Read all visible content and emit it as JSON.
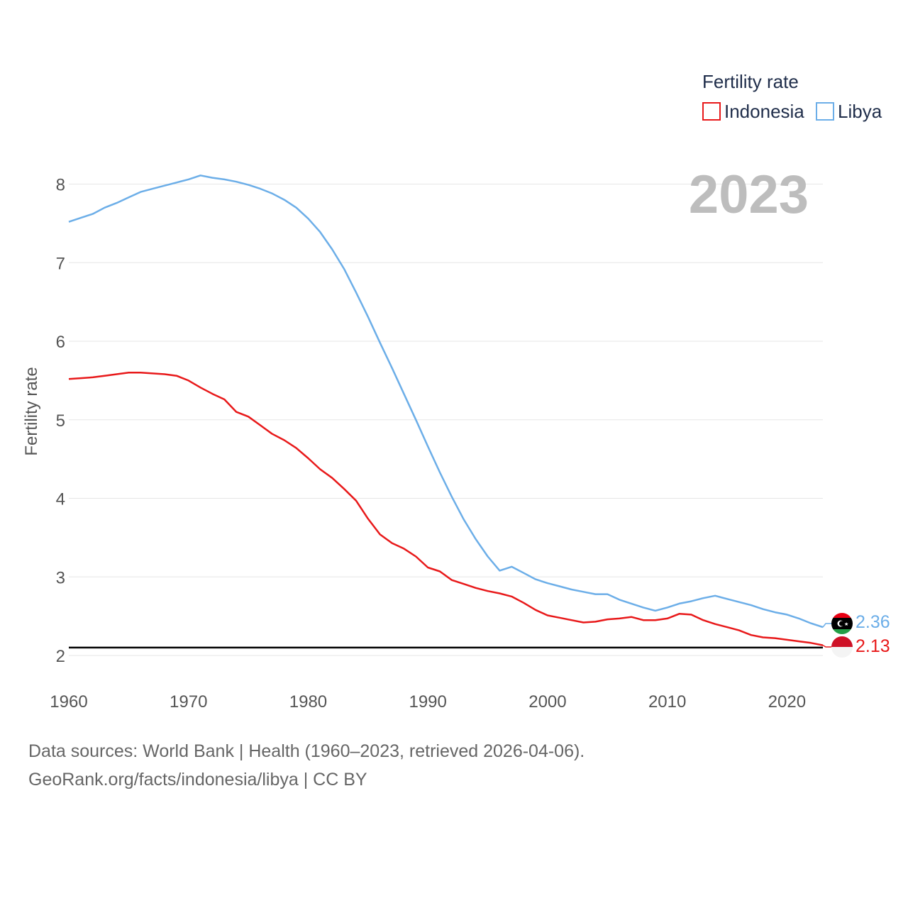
{
  "chart_data": {
    "type": "line",
    "title": "Fertility rate",
    "ylabel": "Fertility rate",
    "xlabel": "",
    "year_display": "2023",
    "xlim": [
      1960,
      2023
    ],
    "ylim": [
      1.8,
      8.5
    ],
    "x_ticks": [
      1960,
      1970,
      1980,
      1990,
      2000,
      2010,
      2020
    ],
    "y_ticks": [
      2,
      3,
      4,
      5,
      6,
      7,
      8
    ],
    "reference_line": {
      "value": 2.1
    },
    "legend": {
      "title": "Fertility rate",
      "position": "top-right"
    },
    "x": [
      1960,
      1961,
      1962,
      1963,
      1964,
      1965,
      1966,
      1967,
      1968,
      1969,
      1970,
      1971,
      1972,
      1973,
      1974,
      1975,
      1976,
      1977,
      1978,
      1979,
      1980,
      1981,
      1982,
      1983,
      1984,
      1985,
      1986,
      1987,
      1988,
      1989,
      1990,
      1991,
      1992,
      1993,
      1994,
      1995,
      1996,
      1997,
      1998,
      1999,
      2000,
      2001,
      2002,
      2003,
      2004,
      2005,
      2006,
      2007,
      2008,
      2009,
      2010,
      2011,
      2012,
      2013,
      2014,
      2015,
      2016,
      2017,
      2018,
      2019,
      2020,
      2021,
      2022,
      2023
    ],
    "series": [
      {
        "name": "Indonesia",
        "color": "#e8191a",
        "end_label": "2.13",
        "values": [
          5.52,
          5.53,
          5.54,
          5.56,
          5.58,
          5.6,
          5.6,
          5.59,
          5.58,
          5.56,
          5.5,
          5.41,
          5.33,
          5.26,
          5.1,
          5.04,
          4.93,
          4.82,
          4.74,
          4.64,
          4.51,
          4.37,
          4.26,
          4.12,
          3.97,
          3.74,
          3.54,
          3.43,
          3.36,
          3.26,
          3.12,
          3.07,
          2.96,
          2.91,
          2.86,
          2.82,
          2.79,
          2.75,
          2.67,
          2.58,
          2.51,
          2.48,
          2.45,
          2.42,
          2.43,
          2.46,
          2.47,
          2.49,
          2.45,
          2.45,
          2.47,
          2.53,
          2.52,
          2.45,
          2.4,
          2.36,
          2.32,
          2.26,
          2.23,
          2.22,
          2.2,
          2.18,
          2.16,
          2.13
        ]
      },
      {
        "name": "Libya",
        "color": "#6caee8",
        "end_label": "2.36",
        "values": [
          7.52,
          7.57,
          7.62,
          7.7,
          7.76,
          7.83,
          7.9,
          7.94,
          7.98,
          8.02,
          8.06,
          8.11,
          8.08,
          8.06,
          8.03,
          7.99,
          7.94,
          7.88,
          7.8,
          7.7,
          7.56,
          7.39,
          7.17,
          6.92,
          6.62,
          6.31,
          5.98,
          5.66,
          5.33,
          5.0,
          4.66,
          4.33,
          4.02,
          3.73,
          3.48,
          3.26,
          3.08,
          3.13,
          3.05,
          2.97,
          2.92,
          2.88,
          2.84,
          2.81,
          2.78,
          2.78,
          2.71,
          2.66,
          2.61,
          2.57,
          2.61,
          2.66,
          2.69,
          2.73,
          2.76,
          2.72,
          2.68,
          2.64,
          2.59,
          2.55,
          2.52,
          2.47,
          2.41,
          2.36
        ]
      }
    ]
  },
  "footer": {
    "line1": "Data sources: World Bank | Health (1960–2023, retrieved 2026-04-06).",
    "line2": "GeoRank.org/facts/indonesia/libya | CC BY"
  }
}
